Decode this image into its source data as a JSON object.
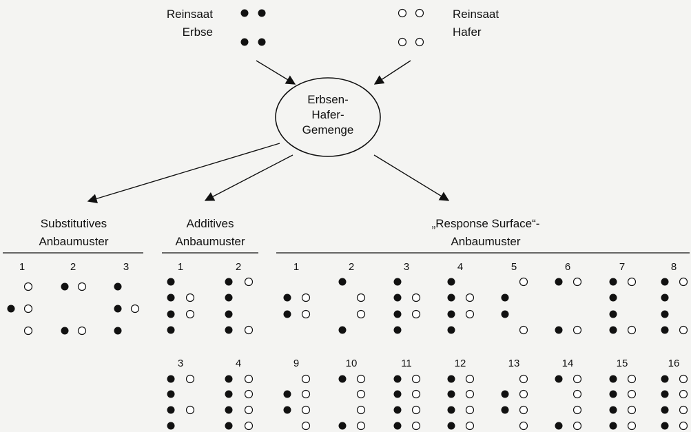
{
  "sources": {
    "pea": {
      "line1": "Reinsaat",
      "line2": "Erbse"
    },
    "oat": {
      "line1": "Reinsaat",
      "line2": "Hafer"
    }
  },
  "center": {
    "lines": [
      "Erbsen-",
      "Hafer-",
      "Gemenge"
    ]
  },
  "groups": {
    "substitutive": {
      "title": [
        "Substitutives",
        "Anbaumuster"
      ],
      "patterns": [
        {
          "label": "1",
          "pea": [
            0,
            1,
            0
          ],
          "oat": [
            1,
            1,
            1
          ]
        },
        {
          "label": "2",
          "pea": [
            1,
            0,
            1
          ],
          "oat": [
            1,
            0,
            1
          ]
        },
        {
          "label": "3",
          "pea": [
            1,
            1,
            1
          ],
          "oat": [
            0,
            1,
            0
          ]
        }
      ]
    },
    "additive": {
      "title": [
        "Additives",
        "Anbaumuster"
      ],
      "patterns": [
        {
          "label": "1",
          "pea": [
            1,
            1,
            1,
            1
          ],
          "oat": [
            0,
            1,
            1,
            0
          ]
        },
        {
          "label": "2",
          "pea": [
            1,
            1,
            1,
            1
          ],
          "oat": [
            1,
            0,
            0,
            1
          ]
        },
        {
          "label": "3",
          "pea": [
            1,
            1,
            1,
            1
          ],
          "oat": [
            1,
            0,
            1,
            0
          ]
        },
        {
          "label": "4",
          "pea": [
            1,
            1,
            1,
            1
          ],
          "oat": [
            1,
            1,
            1,
            1
          ]
        }
      ]
    },
    "response": {
      "title": [
        "„Response Surface“-",
        "Anbaumuster"
      ],
      "patterns": [
        {
          "label": "1",
          "pea": [
            0,
            1,
            1,
            0
          ],
          "oat": [
            0,
            1,
            1,
            0
          ]
        },
        {
          "label": "2",
          "pea": [
            1,
            0,
            0,
            1
          ],
          "oat": [
            0,
            1,
            1,
            0
          ]
        },
        {
          "label": "3",
          "pea": [
            1,
            1,
            1,
            1
          ],
          "oat": [
            0,
            1,
            1,
            0
          ]
        },
        {
          "label": "4",
          "pea": [
            1,
            1,
            1,
            1
          ],
          "oat": [
            0,
            1,
            1,
            0
          ]
        },
        {
          "label": "5",
          "pea": [
            0,
            1,
            1,
            0
          ],
          "oat": [
            1,
            0,
            0,
            1
          ]
        },
        {
          "label": "6",
          "pea": [
            1,
            0,
            0,
            1
          ],
          "oat": [
            1,
            0,
            0,
            1
          ]
        },
        {
          "label": "7",
          "pea": [
            1,
            1,
            1,
            1
          ],
          "oat": [
            1,
            0,
            0,
            1
          ]
        },
        {
          "label": "8",
          "pea": [
            1,
            1,
            1,
            1
          ],
          "oat": [
            1,
            0,
            0,
            1
          ]
        },
        {
          "label": "9",
          "pea": [
            0,
            1,
            1,
            0
          ],
          "oat": [
            1,
            1,
            1,
            1
          ]
        },
        {
          "label": "10",
          "pea": [
            1,
            0,
            0,
            1
          ],
          "oat": [
            1,
            1,
            1,
            1
          ]
        },
        {
          "label": "11",
          "pea": [
            1,
            1,
            1,
            1
          ],
          "oat": [
            1,
            1,
            1,
            1
          ]
        },
        {
          "label": "12",
          "pea": [
            1,
            1,
            1,
            1
          ],
          "oat": [
            1,
            1,
            1,
            1
          ]
        },
        {
          "label": "13",
          "pea": [
            0,
            1,
            1,
            0
          ],
          "oat": [
            1,
            1,
            1,
            1
          ]
        },
        {
          "label": "14",
          "pea": [
            1,
            0,
            0,
            1
          ],
          "oat": [
            1,
            1,
            1,
            1
          ]
        },
        {
          "label": "15",
          "pea": [
            1,
            1,
            1,
            1
          ],
          "oat": [
            1,
            1,
            1,
            1
          ]
        },
        {
          "label": "16",
          "pea": [
            1,
            1,
            1,
            1
          ],
          "oat": [
            1,
            1,
            1,
            1
          ]
        }
      ]
    }
  },
  "colors": {
    "pea": "#111111",
    "oat": "#ffffff",
    "line": "#111111"
  }
}
